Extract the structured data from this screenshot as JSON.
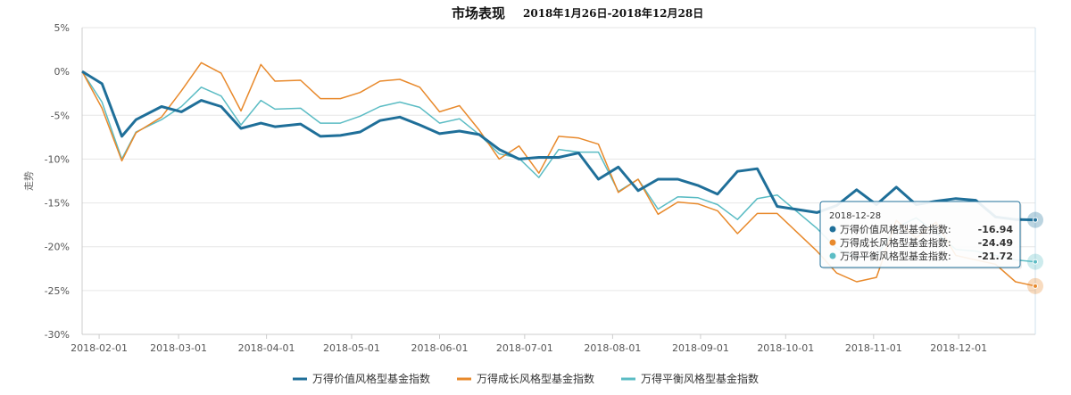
{
  "chart_data": {
    "type": "line",
    "title": "市场表现",
    "subtitle": "2018年1月26日-2018年12月28日",
    "ylabel": "走势",
    "ylim": [
      -30,
      5
    ],
    "y_ticks": [
      "5%",
      "0%",
      "-5%",
      "-10%",
      "-15%",
      "-20%",
      "-25%",
      "-30%"
    ],
    "y_tick_values": [
      5,
      0,
      -5,
      -10,
      -15,
      -20,
      -25,
      -30
    ],
    "x_range": [
      "2018-01-26",
      "2018-12-28"
    ],
    "x_ticks": [
      "2018-02-01",
      "2018-03-01",
      "2018-04-01",
      "2018-05-01",
      "2018-06-01",
      "2018-07-01",
      "2018-08-01",
      "2018-09-01",
      "2018-10-01",
      "2018-11-01",
      "2018-12-01"
    ],
    "grid": "horizontal",
    "legend_position": "bottom",
    "x": [
      "2018-01-26",
      "2018-02-02",
      "2018-02-09",
      "2018-02-14",
      "2018-02-23",
      "2018-03-02",
      "2018-03-09",
      "2018-03-16",
      "2018-03-23",
      "2018-03-30",
      "2018-04-04",
      "2018-04-13",
      "2018-04-20",
      "2018-04-27",
      "2018-05-04",
      "2018-05-11",
      "2018-05-18",
      "2018-05-25",
      "2018-06-01",
      "2018-06-08",
      "2018-06-15",
      "2018-06-22",
      "2018-06-29",
      "2018-07-06",
      "2018-07-13",
      "2018-07-20",
      "2018-07-27",
      "2018-08-03",
      "2018-08-10",
      "2018-08-17",
      "2018-08-24",
      "2018-08-31",
      "2018-09-07",
      "2018-09-14",
      "2018-09-21",
      "2018-09-28",
      "2018-10-12",
      "2018-10-19",
      "2018-10-26",
      "2018-11-02",
      "2018-11-09",
      "2018-11-16",
      "2018-11-23",
      "2018-11-30",
      "2018-12-07",
      "2018-12-14",
      "2018-12-21",
      "2018-12-28"
    ],
    "series": [
      {
        "name": "万得价值风格型基金指数",
        "color": "#1f6f99",
        "width": 3,
        "values": [
          0,
          -1.4,
          -7.4,
          -5.5,
          -4,
          -4.6,
          -3.3,
          -4,
          -6.5,
          -5.9,
          -6.3,
          -6,
          -7.4,
          -7.3,
          -6.9,
          -5.6,
          -5.2,
          -6.1,
          -7.1,
          -6.8,
          -7.2,
          -8.9,
          -10,
          -9.8,
          -9.8,
          -9.3,
          -12.3,
          -10.9,
          -13.6,
          -12.3,
          -12.3,
          -13,
          -14,
          -11.4,
          -11.1,
          -15.4,
          -16.1,
          -15.3,
          -13.5,
          -15.2,
          -13.2,
          -15.2,
          -14.8,
          -14.5,
          -14.7,
          -16.6,
          -16.9,
          -16.94
        ]
      },
      {
        "name": "万得成长风格型基金指数",
        "color": "#e8892b",
        "width": 1.5,
        "values": [
          0,
          -4.2,
          -10.2,
          -7,
          -5.2,
          -2.2,
          1,
          -0.2,
          -4.5,
          0.8,
          -1.1,
          -1,
          -3.1,
          -3.1,
          -2.4,
          -1.1,
          -0.9,
          -1.8,
          -4.6,
          -3.9,
          -6.7,
          -10,
          -8.5,
          -11.6,
          -7.4,
          -7.6,
          -8.3,
          -13.8,
          -12.3,
          -16.3,
          -14.9,
          -15.1,
          -15.9,
          -18.5,
          -16.2,
          -16.2,
          -20.5,
          -23,
          -24,
          -23.5,
          -17,
          -19,
          -17.2,
          -21,
          -21.5,
          -22,
          -24,
          -24.49
        ]
      },
      {
        "name": "万得平衡风格型基金指数",
        "color": "#5bbcc4",
        "width": 1.5,
        "values": [
          0,
          -3.5,
          -10,
          -6.9,
          -5.5,
          -4,
          -1.8,
          -2.8,
          -6.1,
          -3.3,
          -4.3,
          -4.2,
          -5.9,
          -5.9,
          -5.1,
          -4,
          -3.5,
          -4.1,
          -5.9,
          -5.4,
          -7.2,
          -9.4,
          -9.9,
          -12.1,
          -8.9,
          -9.2,
          -9.2,
          -13.7,
          -12.3,
          -15.7,
          -14.3,
          -14.4,
          -15.2,
          -16.9,
          -14.5,
          -14.1,
          -17.9,
          -20.2,
          -21.2,
          -21,
          -17.8,
          -16.7,
          -18.4,
          -20.3,
          -20.5,
          -21,
          -21.5,
          -21.72
        ]
      }
    ],
    "tooltip": {
      "date": "2018-12-28",
      "rows": [
        {
          "label": "万得价值风格型基金指数:",
          "value": "-16.94",
          "color": "#1f6f99"
        },
        {
          "label": "万得成长风格型基金指数:",
          "value": "-24.49",
          "color": "#e8892b"
        },
        {
          "label": "万得平衡风格型基金指数:",
          "value": "-21.72",
          "color": "#5bbcc4"
        }
      ]
    }
  }
}
